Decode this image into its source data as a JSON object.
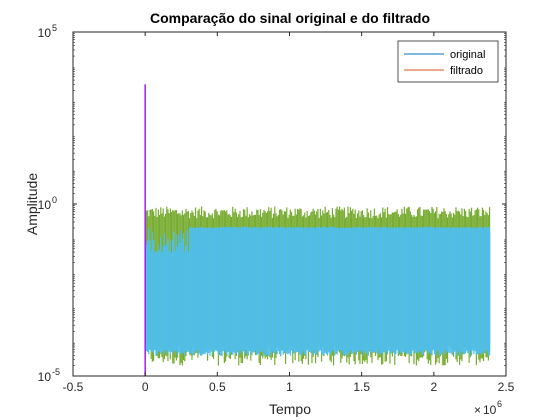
{
  "chart_data": {
    "type": "line",
    "title": "Comparação do sinal original e do filtrado",
    "xlabel": "Tempo",
    "ylabel": "Amplitude",
    "x_exponent_label": "10",
    "x_exponent_power": "6",
    "x_scale_factor": 1000000,
    "xlim": [
      -0.5,
      2.5
    ],
    "ylim": [
      1e-05,
      100000.0
    ],
    "yscale": "log",
    "xticks": [
      -0.5,
      0,
      0.5,
      1,
      1.5,
      2,
      2.5
    ],
    "xtick_labels": [
      "-0.5",
      "0",
      "0.5",
      "1",
      "1.5",
      "2",
      "2.5"
    ],
    "yticks": [
      {
        "value": 100000.0,
        "base": "10",
        "exp": "5"
      },
      {
        "value": 1,
        "base": "10",
        "exp": "0"
      },
      {
        "value": 1e-05,
        "base": "10",
        "exp": "-5"
      }
    ],
    "grid": false,
    "legend_position": "top-right",
    "series": [
      {
        "name": "original",
        "color": "#0072bd",
        "fill_color": "#4dbeee",
        "spike": {
          "x": 0,
          "peak": 3000
        },
        "band": {
          "x_start": 0,
          "x_end": 2.39,
          "lower": 5e-05,
          "upper_early": 0.2,
          "upper": 0.22,
          "upper_change_x": 0.3
        }
      },
      {
        "name": "filtrado",
        "color": "#d95319",
        "fill_color": "#77ac30",
        "band": {
          "x_start": 0,
          "x_end": 2.39,
          "lower": 3e-05,
          "upper": 0.5
        }
      }
    ],
    "spike_color": "#a020f0"
  }
}
